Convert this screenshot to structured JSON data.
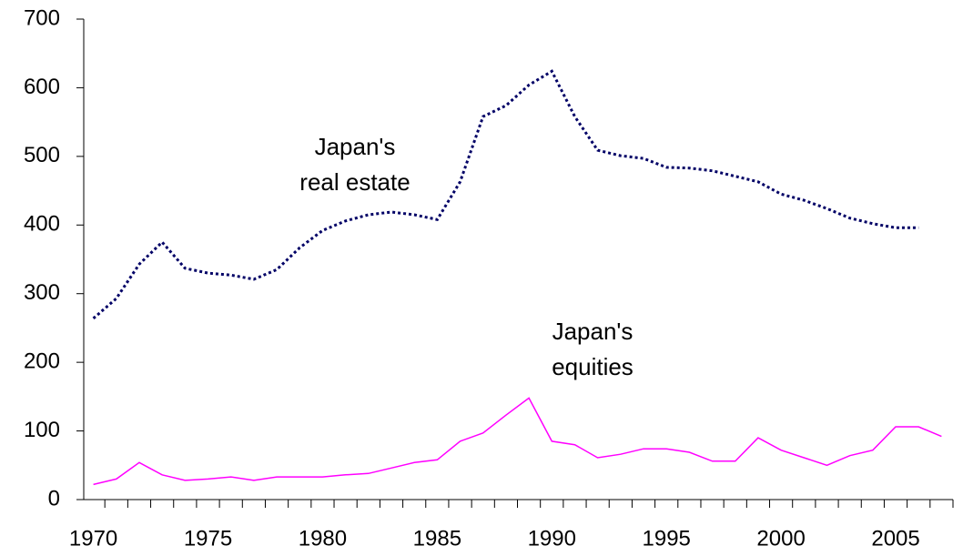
{
  "chart_data": {
    "type": "line",
    "categories": [
      "1970",
      null,
      null,
      null,
      null,
      "1975",
      null,
      null,
      null,
      null,
      "1980",
      null,
      null,
      null,
      null,
      "1985",
      null,
      null,
      null,
      null,
      "1990",
      null,
      null,
      null,
      null,
      "1995",
      null,
      null,
      null,
      null,
      "2000",
      null,
      null,
      null,
      null,
      "2005",
      null,
      null
    ],
    "series": [
      {
        "color": "#000066",
        "style": "dotted",
        "values": [
          264,
          293,
          343,
          375,
          337,
          330,
          327,
          321,
          335,
          367,
          392,
          406,
          415,
          419,
          415,
          408,
          463,
          558,
          574,
          604,
          624,
          558,
          509,
          501,
          497,
          484,
          483,
          479,
          471,
          463,
          445,
          436,
          424,
          410,
          402,
          396,
          396,
          null
        ]
      },
      {
        "color": "#ff00ff",
        "style": "solid",
        "values": [
          22,
          30,
          54,
          36,
          28,
          30,
          33,
          28,
          33,
          33,
          33,
          36,
          38,
          46,
          54,
          58,
          85,
          97,
          123,
          148,
          85,
          80,
          61,
          66,
          74,
          74,
          69,
          56,
          56,
          90,
          72,
          61,
          50,
          64,
          72,
          106,
          106,
          92
        ]
      }
    ],
    "annotations": [
      {
        "lines": [
          "Japan's",
          "real estate"
        ]
      },
      {
        "lines": [
          "Japan's",
          "equities"
        ]
      }
    ],
    "ylim": [
      0,
      700
    ],
    "yticks": [
      0,
      100,
      200,
      300,
      400,
      500,
      600,
      700
    ],
    "grid": false
  }
}
